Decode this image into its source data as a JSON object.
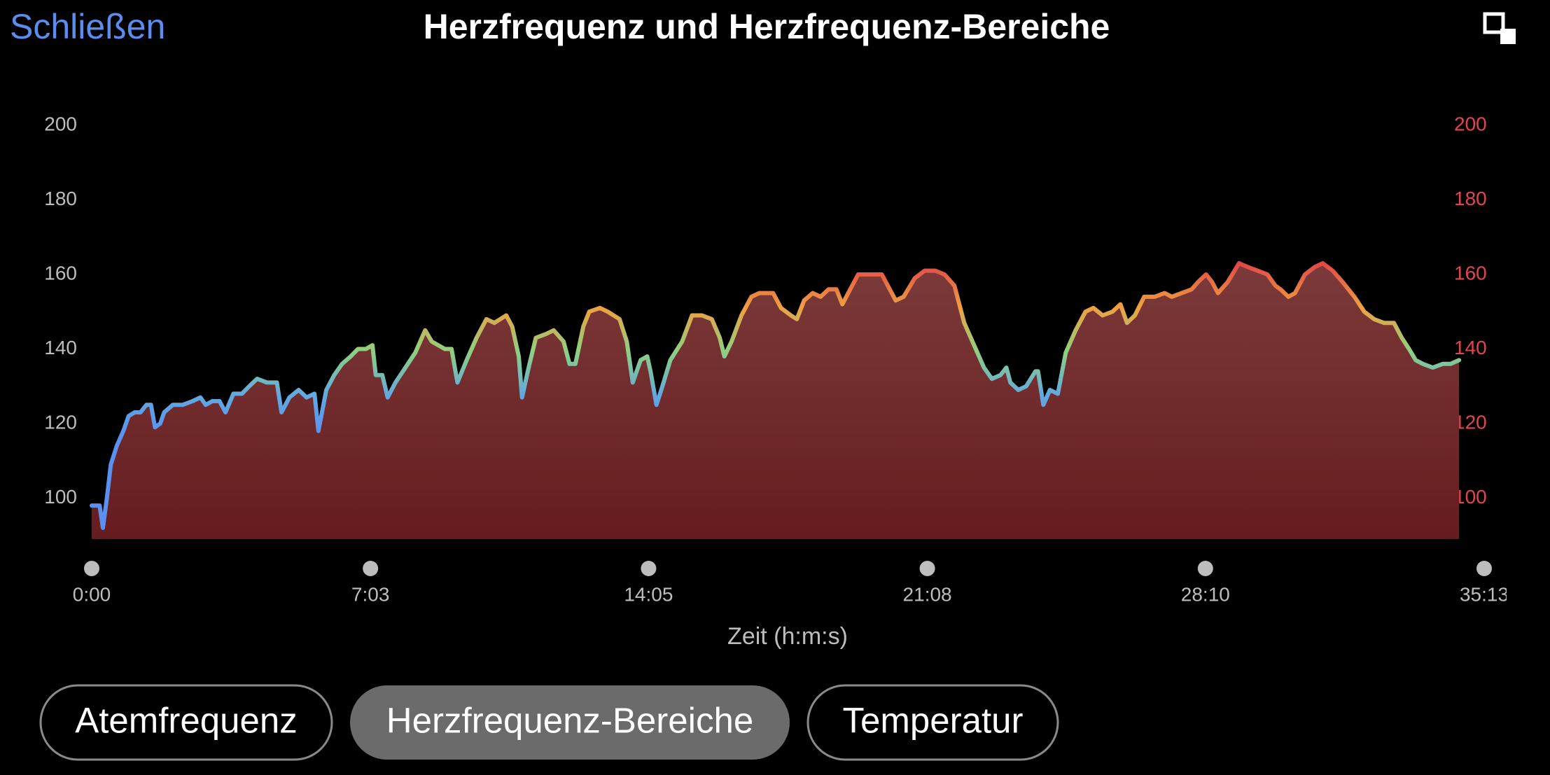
{
  "header": {
    "close": "Schließen",
    "title": "Herzfrequenz und Herzfrequenz-Bereiche"
  },
  "chart_data": {
    "type": "line",
    "x_label": "Zeit (h:m:s)",
    "x": [
      0,
      6,
      12,
      17,
      23,
      29,
      38,
      48,
      56,
      65,
      74,
      83,
      90,
      96,
      104,
      110,
      123,
      138,
      153,
      165,
      173,
      183,
      194,
      203,
      215,
      228,
      239,
      251,
      266,
      281,
      288,
      300,
      314,
      326,
      338,
      344,
      356,
      368,
      380,
      393,
      404,
      416,
      426,
      431,
      441,
      449,
      461,
      476,
      491,
      506,
      516,
      536,
      546,
      555,
      569,
      584,
      599,
      611,
      629,
      638,
      648,
      653,
      663,
      674,
      689,
      701,
      716,
      725,
      734,
      746,
      755,
      771,
      783,
      801,
      812,
      821,
      833,
      843,
      848,
      857,
      866,
      878,
      896,
      911,
      926,
      941,
      953,
      960,
      971,
      986,
      1001,
      1013,
      1023,
      1034,
      1046,
      1061,
      1070,
      1081,
      1094,
      1106,
      1118,
      1130,
      1139,
      1148,
      1163,
      1178,
      1199,
      1208,
      1220,
      1232,
      1249,
      1264,
      1280,
      1294,
      1309,
      1324,
      1339,
      1354,
      1366,
      1379,
      1388,
      1394,
      1406,
      1418,
      1432,
      1436,
      1444,
      1454,
      1466,
      1478,
      1493,
      1508,
      1520,
      1534,
      1549,
      1561,
      1571,
      1583,
      1597,
      1613,
      1628,
      1639,
      1654,
      1669,
      1679,
      1691,
      1700,
      1709,
      1724,
      1741,
      1754,
      1769,
      1784,
      1796,
      1804,
      1816,
      1826,
      1841,
      1856,
      1868,
      1883,
      1898,
      1916,
      1931,
      1946,
      1961,
      1976,
      1988,
      1999,
      2009,
      2020,
      2035,
      2050,
      2062,
      2075
    ],
    "series": [
      {
        "name": "Herzfrequenz",
        "colors": [
          "#5b8ff0",
          "#5b8ff0",
          "#5b8ff0",
          "#62a8e0",
          "#8fd080",
          "#f0a040",
          "#e04848"
        ],
        "area_colors": [
          "#7c3a3a",
          "#661c1e"
        ],
        "values": [
          98,
          98,
          98,
          92,
          100,
          109,
          114,
          118,
          122,
          123,
          123,
          125,
          125,
          119,
          120,
          123,
          125,
          125,
          126,
          127,
          125,
          126,
          126,
          123,
          128,
          128,
          130,
          132,
          131,
          131,
          123,
          127,
          129,
          127,
          128,
          118,
          129,
          133,
          136,
          138,
          140,
          140,
          141,
          133,
          133,
          127,
          131,
          135,
          139,
          145,
          142,
          140,
          140,
          131,
          137,
          143,
          148,
          147,
          149,
          146,
          138,
          127,
          135,
          143,
          144,
          145,
          142,
          136,
          136,
          146,
          150,
          151,
          150,
          148,
          142,
          131,
          137,
          138,
          134,
          125,
          130,
          137,
          142,
          149,
          149,
          148,
          143,
          138,
          142,
          149,
          154,
          155,
          155,
          155,
          151,
          149,
          148,
          153,
          155,
          154,
          156,
          156,
          152,
          155,
          160,
          160,
          160,
          157,
          153,
          154,
          159,
          161,
          161,
          160,
          157,
          147,
          141,
          135,
          132,
          133,
          135,
          131,
          129,
          130,
          134,
          134,
          125,
          129,
          128,
          139,
          145,
          150,
          151,
          149,
          150,
          152,
          147,
          149,
          154,
          154,
          155,
          154,
          155,
          156,
          158,
          160,
          158,
          155,
          158,
          163,
          162,
          161,
          160,
          157,
          156,
          154,
          155,
          160,
          162,
          163,
          161,
          158,
          154,
          150,
          148,
          147,
          147,
          143,
          140,
          137,
          136,
          135,
          136,
          136,
          137
        ]
      }
    ],
    "xlim": [
      0,
      2113
    ],
    "xticks": [
      {
        "value": 0,
        "label": "0:00"
      },
      {
        "value": 423,
        "label": "7:03"
      },
      {
        "value": 845,
        "label": "14:05"
      },
      {
        "value": 1268,
        "label": "21:08"
      },
      {
        "value": 1690,
        "label": "28:10"
      },
      {
        "value": 2113,
        "label": "35:13"
      }
    ],
    "ylim": [
      89,
      200
    ],
    "yticks": [
      100,
      120,
      140,
      160,
      180,
      200
    ],
    "y2lim": [
      89,
      200
    ],
    "y2ticks": [
      100,
      120,
      140,
      160,
      180,
      200
    ],
    "y2_color": "#e0464e"
  },
  "tabs": [
    {
      "label": "Atemfrequenz",
      "active": false
    },
    {
      "label": "Herzfrequenz-Bereiche",
      "active": true
    },
    {
      "label": "Temperatur",
      "active": false
    }
  ]
}
